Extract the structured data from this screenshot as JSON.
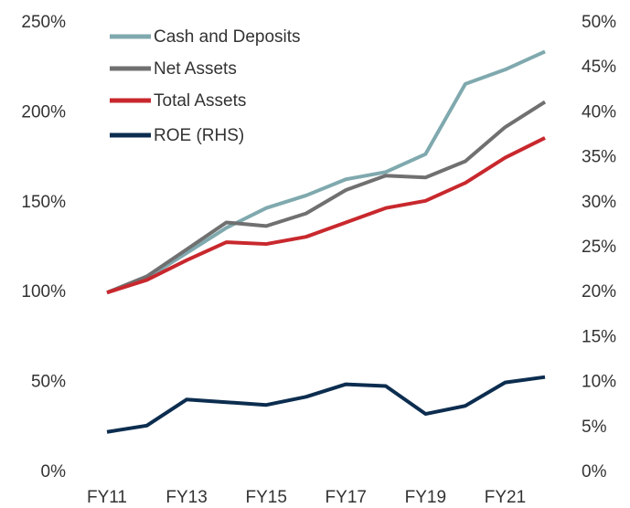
{
  "chart_data": {
    "type": "line",
    "categories": [
      "FY11",
      null,
      "FY13",
      null,
      "FY15",
      null,
      "FY17",
      null,
      "FY19",
      null,
      "FY21",
      null
    ],
    "series": [
      {
        "name": "Cash and Deposits",
        "color": "#7fa9ae",
        "values": [
          100,
          108,
          122,
          136,
          147,
          154,
          163,
          167,
          177,
          216,
          224,
          234
        ]
      },
      {
        "name": "Net Assets",
        "color": "#707070",
        "values": [
          100,
          109,
          124,
          139,
          137,
          144,
          157,
          165,
          164,
          173,
          192,
          206
        ]
      },
      {
        "name": "Total Assets",
        "color": "#c8282d",
        "values": [
          100,
          107,
          118,
          128,
          127,
          131,
          139,
          147,
          151,
          161,
          175,
          186
        ]
      },
      {
        "name": "ROE (RHS)",
        "color": "#0c2d4f",
        "axis": "y2",
        "values": [
          4.5,
          5.2,
          8.1,
          7.8,
          7.5,
          8.4,
          9.8,
          9.6,
          6.5,
          7.4,
          10.0,
          10.6
        ]
      }
    ],
    "ylim": [
      0,
      250
    ],
    "yticks": [
      {
        "value": 0,
        "label": "0%"
      },
      {
        "value": 50,
        "label": "50%"
      },
      {
        "value": 100,
        "label": "100%"
      },
      {
        "value": 150,
        "label": "150%"
      },
      {
        "value": 200,
        "label": "200%"
      },
      {
        "value": 250,
        "label": "250%"
      }
    ],
    "y2lim": [
      0,
      50
    ],
    "y2ticks": [
      {
        "value": 0,
        "label": "0%"
      },
      {
        "value": 5,
        "label": "5%"
      },
      {
        "value": 10,
        "label": "10%"
      },
      {
        "value": 15,
        "label": "15%"
      },
      {
        "value": 20,
        "label": "20%"
      },
      {
        "value": 25,
        "label": "25%"
      },
      {
        "value": 30,
        "label": "30%"
      },
      {
        "value": 35,
        "label": "35%"
      },
      {
        "value": 40,
        "label": "40%"
      },
      {
        "value": 45,
        "label": "45%"
      },
      {
        "value": 50,
        "label": "50%"
      }
    ],
    "legend": "top-left"
  }
}
